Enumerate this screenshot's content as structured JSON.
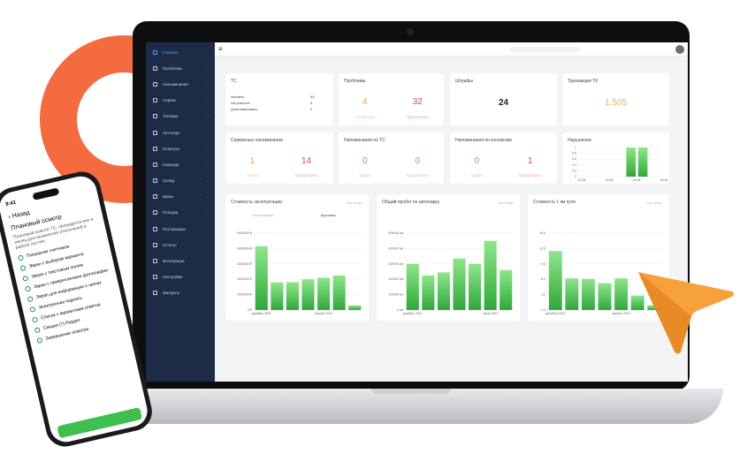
{
  "sidebar": {
    "items": [
      {
        "label": "Главная",
        "icon": "home-icon",
        "active": true
      },
      {
        "label": "Проблемы",
        "icon": "problem-icon",
        "chevron": true
      },
      {
        "label": "Напоминания",
        "icon": "bell-icon",
        "chevron": true
      },
      {
        "label": "Сервис",
        "icon": "wrench-icon",
        "chevron": true
      },
      {
        "label": "Топливо",
        "icon": "fuel-icon",
        "chevron": true
      },
      {
        "label": "Автопарк",
        "icon": "car-icon",
        "chevron": true
      },
      {
        "label": "Осмотры",
        "icon": "scan-icon",
        "chevron": true
      },
      {
        "label": "Команда",
        "icon": "team-icon",
        "chevron": true
      },
      {
        "label": "Склад",
        "icon": "warehouse-icon",
        "chevron": true
      },
      {
        "label": "Шины",
        "icon": "tire-icon",
        "chevron": true
      },
      {
        "label": "Поездки",
        "icon": "trip-icon",
        "chevron": true
      },
      {
        "label": "Поставщики",
        "icon": "supplier-icon"
      },
      {
        "label": "Отчеты",
        "icon": "report-icon"
      },
      {
        "label": "Интеграции",
        "icon": "sync-icon"
      },
      {
        "label": "Настройки",
        "icon": "gear-icon"
      },
      {
        "label": "Импорты",
        "icon": "cloud-upload-icon"
      }
    ]
  },
  "colors": {
    "sidebar": "#1d2c46",
    "accent": "#4aa3ff",
    "orange": "#f0a04b",
    "red": "#e0454d",
    "green": "#4cbf4c",
    "brand": "#f36b3f"
  },
  "cards": {
    "vehicles": {
      "title": "ТС",
      "rows": [
        {
          "label": "Активно",
          "value": "53"
        },
        {
          "label": "На ремонте",
          "value": "0"
        },
        {
          "label": "Деактивировано",
          "value": "2"
        }
      ]
    },
    "problems": {
      "title": "Проблемы",
      "open": "4",
      "open_label": "Открытые",
      "overdue": "32",
      "overdue_label": "Просрочено"
    },
    "fines": {
      "title": "Штрафы",
      "value": "24"
    },
    "transactions": {
      "title": "Транзакции ТК",
      "value": "1,505"
    },
    "service": {
      "title": "Сервисные напоминания",
      "soon": "1",
      "soon_label": "Скоро",
      "overdue": "14",
      "overdue_label": "Просрочено"
    },
    "vehicle_rem": {
      "title": "Напоминания по ТС",
      "soon": "0",
      "soon_label": "Скоро",
      "overdue": "0",
      "overdue_label": "Просрочено"
    },
    "contact_rem": {
      "title": "Напоминания по контактам",
      "soon": "0",
      "soon_label": "Скоро",
      "overdue": "1",
      "overdue_label": "Просрочено"
    },
    "violations": {
      "title": "Нарушения"
    }
  },
  "report_link": "См. отчет",
  "chart_tabs": [
    "Гистограмма",
    "Круговая"
  ],
  "chart_data": [
    {
      "type": "bar",
      "title": "Нарушения",
      "categories": [
        "22.06",
        "23.06",
        "24.06",
        "25.06"
      ],
      "x": [
        "22.06",
        "22.5",
        "23.06",
        "23.5",
        "24.06",
        "24.3",
        "25.06"
      ],
      "values": [
        0,
        0,
        0,
        0,
        1,
        1,
        0
      ],
      "yticks": [
        "0",
        "0.2",
        "0.4",
        "0.6",
        "0.8",
        "1"
      ],
      "ylim": [
        0,
        1
      ]
    },
    {
      "type": "bar",
      "title": "Стоимость эксплуатации",
      "xticks": [
        "декабрь 2021",
        "апрель 2022"
      ],
      "values": [
        4150000,
        1800000,
        1820000,
        2000000,
        2100000,
        2250000,
        300000
      ],
      "yticks": [
        "0 ₽",
        "1000000 ₽",
        "2000000 ₽",
        "3000000 ₽",
        "4000000 ₽",
        "5000000 ₽"
      ],
      "ylim": [
        0,
        5000000
      ]
    },
    {
      "type": "bar",
      "title": "Общий пробег по автопарку",
      "xticks": [
        "декабрь 2021",
        "июнь 2022"
      ],
      "values": [
        300000,
        225000,
        245000,
        335000,
        300000,
        450000,
        260000
      ],
      "yticks": [
        "0 км",
        "100000 км",
        "200000 км",
        "300000 км",
        "400000 км",
        "500000 км"
      ],
      "ylim": [
        0,
        500000
      ]
    },
    {
      "type": "bar",
      "title": "Стоимость 1 км пути",
      "xticks": [
        "декабрь 2021",
        "апрель 2022"
      ],
      "values": [
        12.3,
        6.6,
        6.5,
        5.6,
        6.6,
        3.0,
        1.0
      ],
      "yticks": [
        "0.0",
        "3.2",
        "6.4",
        "9.6",
        "12.8",
        "16.0"
      ],
      "ylim": [
        0,
        16
      ]
    }
  ],
  "phone": {
    "time": "9:41",
    "back": "Назад",
    "title": "Плановый осмотр",
    "description": "Плановый осмотр ТС, проводится раз в месяц для выявления отклонений в работе систем",
    "items": [
      "Показание счетчиков",
      "Экран с выбором варианта",
      "Экран с текстовым полем",
      "Экран с прикреплением фотографии",
      "Экран для информации о шинах",
      "Электронная подпись",
      "Список с вариантами ответов",
      "Секция (7) Раздел",
      "Завершение осмотра"
    ]
  }
}
